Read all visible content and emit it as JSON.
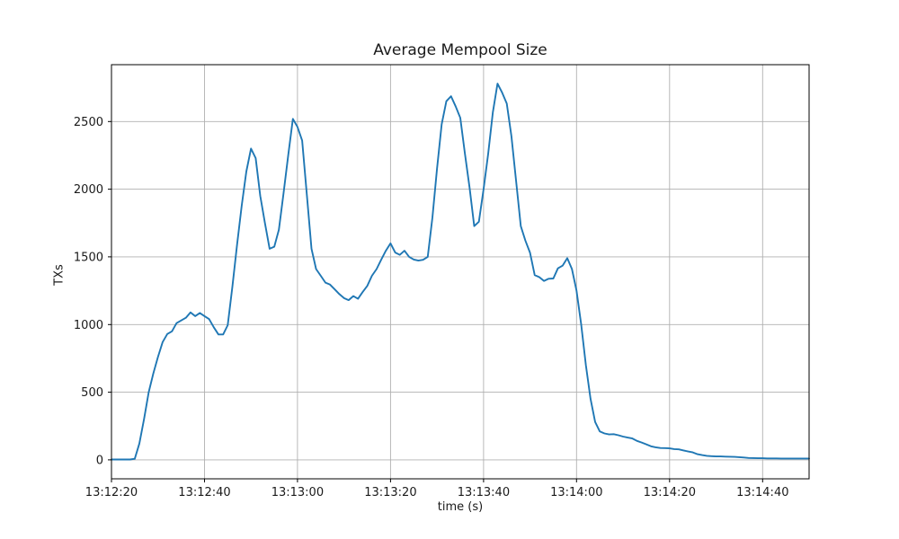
{
  "chart_data": {
    "type": "line",
    "title": "Average Mempool Size",
    "xlabel": "time (s)",
    "ylabel": "TXs",
    "grid": true,
    "legend_position": "none",
    "line_color": "#1f77b4",
    "grid_color": "#b0b0b0",
    "axis_color": "#000000",
    "text_color": "#1a1a1a",
    "background_color": "#ffffff",
    "x_tick_labels": [
      "13:12:20",
      "13:12:40",
      "13:13:00",
      "13:13:20",
      "13:13:40",
      "13:14:00",
      "13:14:20",
      "13:14:40"
    ],
    "x_tick_seconds": [
      0,
      20,
      40,
      60,
      80,
      100,
      120,
      140
    ],
    "y_ticks": [
      0,
      500,
      1000,
      1500,
      2000,
      2500
    ],
    "x_range_seconds": [
      0,
      150
    ],
    "ylim": [
      -140,
      2920
    ],
    "series": [
      {
        "name": "average-mempool-size",
        "points": [
          [
            0,
            3
          ],
          [
            1,
            3
          ],
          [
            2,
            3
          ],
          [
            3,
            3
          ],
          [
            4,
            3
          ],
          [
            5,
            8
          ],
          [
            6,
            120
          ],
          [
            7,
            300
          ],
          [
            8,
            500
          ],
          [
            9,
            640
          ],
          [
            10,
            760
          ],
          [
            11,
            870
          ],
          [
            12,
            930
          ],
          [
            13,
            950
          ],
          [
            14,
            1010
          ],
          [
            15,
            1030
          ],
          [
            16,
            1050
          ],
          [
            17,
            1090
          ],
          [
            18,
            1062
          ],
          [
            19,
            1085
          ],
          [
            20,
            1062
          ],
          [
            21,
            1040
          ],
          [
            22,
            980
          ],
          [
            23,
            927
          ],
          [
            24,
            927
          ],
          [
            25,
            995
          ],
          [
            26,
            1280
          ],
          [
            27,
            1590
          ],
          [
            28,
            1880
          ],
          [
            29,
            2130
          ],
          [
            30,
            2300
          ],
          [
            31,
            2230
          ],
          [
            32,
            1950
          ],
          [
            33,
            1750
          ],
          [
            34,
            1560
          ],
          [
            35,
            1575
          ],
          [
            36,
            1700
          ],
          [
            37,
            1970
          ],
          [
            38,
            2250
          ],
          [
            39,
            2520
          ],
          [
            40,
            2460
          ],
          [
            41,
            2360
          ],
          [
            42,
            1960
          ],
          [
            43,
            1560
          ],
          [
            44,
            1410
          ],
          [
            45,
            1360
          ],
          [
            46,
            1310
          ],
          [
            47,
            1295
          ],
          [
            48,
            1260
          ],
          [
            49,
            1225
          ],
          [
            50,
            1195
          ],
          [
            51,
            1180
          ],
          [
            52,
            1210
          ],
          [
            53,
            1190
          ],
          [
            54,
            1240
          ],
          [
            55,
            1285
          ],
          [
            56,
            1360
          ],
          [
            57,
            1410
          ],
          [
            58,
            1480
          ],
          [
            59,
            1545
          ],
          [
            60,
            1600
          ],
          [
            61,
            1532
          ],
          [
            62,
            1515
          ],
          [
            63,
            1545
          ],
          [
            64,
            1500
          ],
          [
            65,
            1480
          ],
          [
            66,
            1472
          ],
          [
            67,
            1478
          ],
          [
            68,
            1500
          ],
          [
            69,
            1790
          ],
          [
            70,
            2150
          ],
          [
            71,
            2480
          ],
          [
            72,
            2650
          ],
          [
            73,
            2687
          ],
          [
            74,
            2613
          ],
          [
            75,
            2527
          ],
          [
            76,
            2260
          ],
          [
            77,
            2013
          ],
          [
            78,
            1727
          ],
          [
            79,
            1760
          ],
          [
            80,
            2000
          ],
          [
            81,
            2260
          ],
          [
            82,
            2567
          ],
          [
            83,
            2780
          ],
          [
            84,
            2713
          ],
          [
            85,
            2633
          ],
          [
            86,
            2390
          ],
          [
            87,
            2060
          ],
          [
            88,
            1727
          ],
          [
            89,
            1620
          ],
          [
            90,
            1530
          ],
          [
            91,
            1365
          ],
          [
            92,
            1350
          ],
          [
            93,
            1322
          ],
          [
            94,
            1338
          ],
          [
            95,
            1340
          ],
          [
            96,
            1415
          ],
          [
            97,
            1435
          ],
          [
            98,
            1490
          ],
          [
            99,
            1410
          ],
          [
            100,
            1250
          ],
          [
            101,
            1000
          ],
          [
            102,
            700
          ],
          [
            103,
            450
          ],
          [
            104,
            280
          ],
          [
            105,
            210
          ],
          [
            106,
            195
          ],
          [
            107,
            188
          ],
          [
            108,
            190
          ],
          [
            109,
            182
          ],
          [
            110,
            172
          ],
          [
            111,
            165
          ],
          [
            112,
            158
          ],
          [
            113,
            140
          ],
          [
            114,
            128
          ],
          [
            115,
            115
          ],
          [
            116,
            100
          ],
          [
            117,
            93
          ],
          [
            118,
            88
          ],
          [
            119,
            87
          ],
          [
            120,
            85
          ],
          [
            121,
            80
          ],
          [
            122,
            78
          ],
          [
            123,
            70
          ],
          [
            124,
            62
          ],
          [
            125,
            55
          ],
          [
            126,
            42
          ],
          [
            127,
            35
          ],
          [
            128,
            30
          ],
          [
            129,
            27
          ],
          [
            130,
            25
          ],
          [
            131,
            25
          ],
          [
            132,
            24
          ],
          [
            133,
            23
          ],
          [
            134,
            22
          ],
          [
            135,
            20
          ],
          [
            136,
            17
          ],
          [
            137,
            14
          ],
          [
            138,
            13
          ],
          [
            139,
            12
          ],
          [
            140,
            12
          ],
          [
            141,
            11
          ],
          [
            142,
            11
          ],
          [
            143,
            11
          ],
          [
            144,
            10
          ],
          [
            145,
            10
          ],
          [
            146,
            10
          ],
          [
            147,
            10
          ],
          [
            148,
            10
          ],
          [
            149,
            10
          ],
          [
            150,
            10
          ]
        ]
      }
    ]
  }
}
